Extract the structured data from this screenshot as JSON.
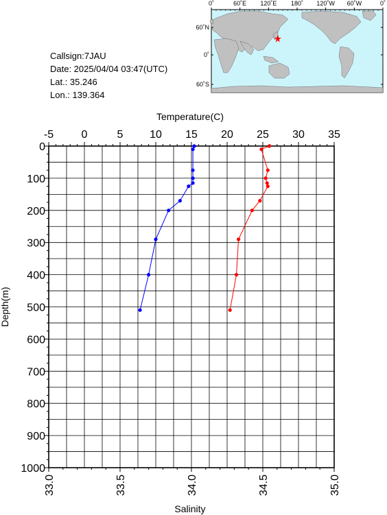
{
  "info": {
    "callsign": "Callsign:7JAU",
    "date": "Date:  2025/04/04 03:47(UTC)",
    "lat": "Lat.:  35.246",
    "lon": "Lon.:  139.364"
  },
  "map": {
    "top_labels": [
      "0˚",
      "60˚E",
      "120˚E",
      "180˚",
      "120˚W",
      "60˚W",
      "0˚"
    ],
    "side_labels": [
      "60˚N",
      "0˚",
      "60˚S"
    ],
    "ocean_color": "#ccf4fb",
    "land_color": "#c0c0c0",
    "marker_color": "#ff0000",
    "station": {
      "lon": 139.364,
      "lat": 35.246
    }
  },
  "chart_data": {
    "type": "line",
    "y_label": "Depth(m)",
    "y_range": [
      0,
      1000
    ],
    "y_ticks": [
      "0",
      "100",
      "200",
      "300",
      "400",
      "500",
      "600",
      "700",
      "800",
      "900",
      "1000"
    ],
    "temperature_axis": {
      "label": "Temperature(C)",
      "range": [
        -5,
        35
      ],
      "ticks": [
        "-5",
        "0",
        "5",
        "10",
        "15",
        "20",
        "25",
        "30",
        "35"
      ]
    },
    "salinity_axis": {
      "label": "Salinity",
      "range": [
        33.0,
        35.0
      ],
      "ticks": [
        "33.0",
        "33.5",
        "34.0",
        "34.5",
        "35.0"
      ]
    },
    "grid": true,
    "series": [
      {
        "axis": "salinity",
        "color": "#0000ff",
        "points": [
          {
            "x": 34.02,
            "y": 0
          },
          {
            "x": 34.01,
            "y": 10
          },
          {
            "x": 34.01,
            "y": 75
          },
          {
            "x": 34.01,
            "y": 100
          },
          {
            "x": 34.01,
            "y": 115
          },
          {
            "x": 33.98,
            "y": 125
          },
          {
            "x": 33.92,
            "y": 170
          },
          {
            "x": 33.84,
            "y": 200
          },
          {
            "x": 33.75,
            "y": 290
          },
          {
            "x": 33.7,
            "y": 400
          },
          {
            "x": 33.64,
            "y": 510
          }
        ]
      },
      {
        "axis": "temperature",
        "color": "#ff0000",
        "points": [
          {
            "x": 25.9,
            "y": 0
          },
          {
            "x": 24.8,
            "y": 10
          },
          {
            "x": 25.7,
            "y": 75
          },
          {
            "x": 25.4,
            "y": 100
          },
          {
            "x": 25.6,
            "y": 115
          },
          {
            "x": 25.7,
            "y": 125
          },
          {
            "x": 24.6,
            "y": 170
          },
          {
            "x": 23.5,
            "y": 200
          },
          {
            "x": 21.6,
            "y": 290
          },
          {
            "x": 21.3,
            "y": 400
          },
          {
            "x": 20.4,
            "y": 510
          }
        ]
      }
    ]
  }
}
